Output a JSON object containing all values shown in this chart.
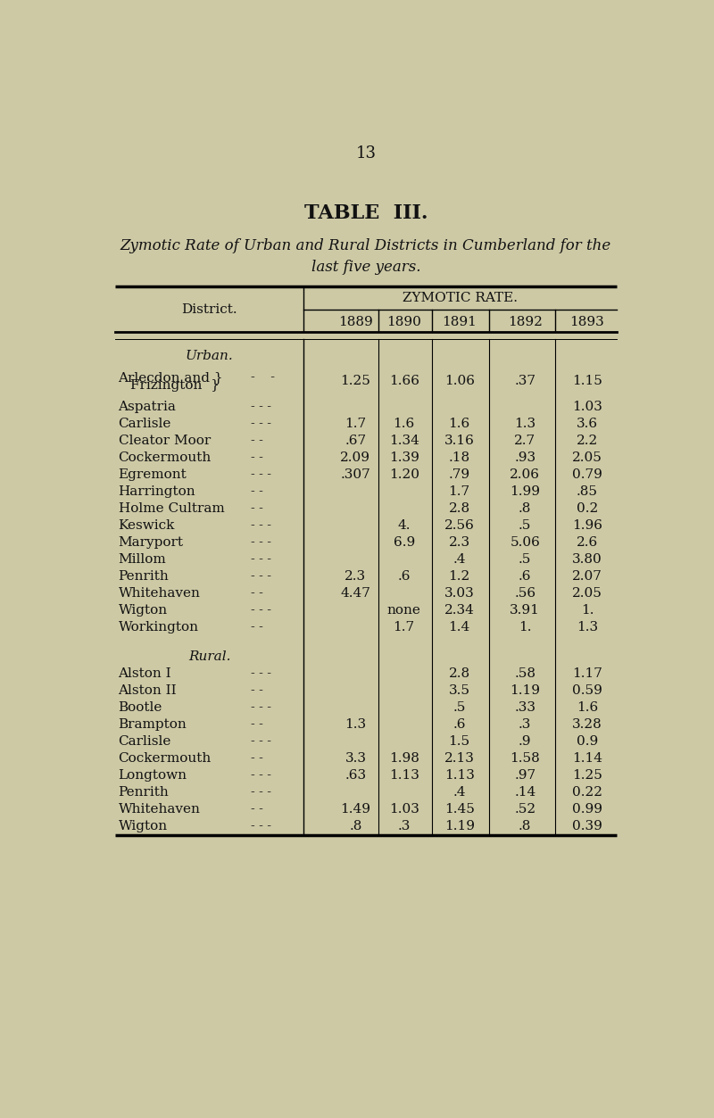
{
  "page_number": "13",
  "table_title": "TABLE  III.",
  "subtitle": "Zymotic Rate of Urban and Rural Districts in Cumberland for the\nlast five years.",
  "header_district": "District.",
  "header_group": "ZYMOTIC RATE.",
  "years": [
    "1889",
    "1890",
    "1891",
    "1892",
    "1893"
  ],
  "bg_color": "#cdc9a5",
  "text_color": "#111111",
  "rows": [
    {
      "label": "Urban.",
      "style": "italic_header",
      "vals": [
        "",
        "",
        "",
        "",
        ""
      ]
    },
    {
      "label": "Arlecdon and \\}",
      "label2": "  Frizington  \\}",
      "style": "brace",
      "vals": [
        "1.25",
        "1.66",
        "1.06",
        ".37",
        "1.15"
      ]
    },
    {
      "label": "Aspatria",
      "style": "dash3",
      "vals": [
        "",
        "",
        "",
        "",
        "1.03"
      ]
    },
    {
      "label": "Carlisle",
      "style": "dash3",
      "vals": [
        "1.7",
        "1.6",
        "1.6",
        "1.3",
        "3.6"
      ]
    },
    {
      "label": "Cleator Moor",
      "style": "dash2",
      "vals": [
        ".67",
        "1.34",
        "3.16",
        "2.7",
        "2.2"
      ]
    },
    {
      "label": "Cockermouth",
      "style": "dash2",
      "vals": [
        "2.09",
        "1.39",
        ".18",
        ".93",
        "2.05"
      ]
    },
    {
      "label": "Egremont",
      "style": "dash3",
      "vals": [
        ".307",
        "1.20",
        ".79",
        "2.06",
        "0.79"
      ]
    },
    {
      "label": "Harrington",
      "style": "dash2",
      "vals": [
        "",
        "",
        "1.7",
        "1.99",
        ".85"
      ]
    },
    {
      "label": "Holme Cultram",
      "style": "dash2",
      "vals": [
        "",
        "",
        "2.8",
        ".8",
        "0.2"
      ]
    },
    {
      "label": "Keswick",
      "style": "dash3",
      "vals": [
        "",
        "4.",
        "2.56",
        ".5",
        "1.96"
      ]
    },
    {
      "label": "Maryport",
      "style": "dash3",
      "vals": [
        "",
        "6.9",
        "2.3",
        "5.06",
        "2.6"
      ]
    },
    {
      "label": "Millom",
      "style": "dash3",
      "vals": [
        "",
        "",
        ".4",
        ".5",
        "3.80"
      ]
    },
    {
      "label": "Penrith",
      "style": "dash3",
      "vals": [
        "2.3",
        ".6",
        "1.2",
        ".6",
        "2.07"
      ]
    },
    {
      "label": "Whitehaven",
      "style": "dash2",
      "vals": [
        "4.47",
        "",
        "3.03",
        ".56",
        "2.05"
      ]
    },
    {
      "label": "Wigton",
      "style": "dash3",
      "vals": [
        "",
        "none",
        "2.34",
        "3.91",
        "1."
      ]
    },
    {
      "label": "Workington",
      "style": "dash2",
      "vals": [
        "",
        "1.7",
        "1.4",
        "1.",
        "1.3"
      ]
    },
    {
      "label": "",
      "style": "spacer",
      "vals": [
        "",
        "",
        "",
        "",
        ""
      ]
    },
    {
      "label": "Rural.",
      "style": "italic_header",
      "vals": [
        "",
        "",
        "",
        "",
        ""
      ]
    },
    {
      "label": "Alston I",
      "style": "dash3",
      "vals": [
        "",
        "",
        "2.8",
        ".58",
        "1.17"
      ]
    },
    {
      "label": "Alston II",
      "style": "dash2",
      "vals": [
        "",
        "",
        "3.5",
        "1.19",
        "0.59"
      ]
    },
    {
      "label": "Bootle",
      "style": "dash3",
      "vals": [
        "",
        "",
        ".5",
        ".33",
        "1.6"
      ]
    },
    {
      "label": "Brampton",
      "style": "dash2",
      "vals": [
        "1.3",
        "",
        ".6",
        ".3",
        "3.28"
      ]
    },
    {
      "label": "Carlisle",
      "style": "dash3",
      "vals": [
        "",
        "",
        "1.5",
        ".9",
        "0.9"
      ]
    },
    {
      "label": "Cockermouth",
      "style": "dash2",
      "vals": [
        "3.3",
        "1.98",
        "2.13",
        "1.58",
        "1.14"
      ]
    },
    {
      "label": "Longtown",
      "style": "dash3",
      "vals": [
        ".63",
        "1.13",
        "1.13",
        ".97",
        "1.25"
      ]
    },
    {
      "label": "Penrith",
      "style": "dash3",
      "vals": [
        "",
        "",
        ".4",
        ".14",
        "0.22"
      ]
    },
    {
      "label": "Whitehaven",
      "style": "dash2",
      "vals": [
        "1.49",
        "1.03",
        "1.45",
        ".52",
        "0.99"
      ]
    },
    {
      "label": "Wigton",
      "style": "dash3",
      "vals": [
        ".8",
        ".3",
        "1.19",
        ".8",
        "0.39"
      ]
    }
  ]
}
